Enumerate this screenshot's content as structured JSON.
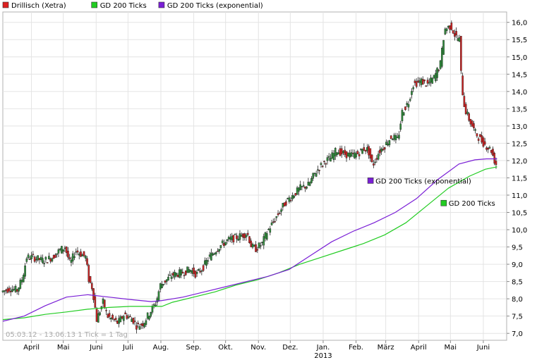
{
  "chart_data": {
    "type": "candlestick",
    "legend": [
      {
        "label": "Drillisch (Xetra)",
        "color": "#dd2020"
      },
      {
        "label": "GD 200 Ticks",
        "color": "#22cc22"
      },
      {
        "label": "GD 200 Ticks (exponential)",
        "color": "#7a1fd6"
      }
    ],
    "y_ticks": [
      "16,0",
      "15,5",
      "15,0",
      "14,5",
      "14,0",
      "13,5",
      "13,0",
      "12,5",
      "12,0",
      "11,5",
      "11,0",
      "10,5",
      "10,0",
      "9,5",
      "9,0",
      "8,5",
      "8,0",
      "7,5",
      "7,0"
    ],
    "ylim": [
      6.8,
      16.3
    ],
    "x_ticks": [
      {
        "label": "April",
        "t": 27
      },
      {
        "label": "Mai",
        "t": 57
      },
      {
        "label": "Juni",
        "t": 88
      },
      {
        "label": "Juli",
        "t": 118
      },
      {
        "label": "Aug.",
        "t": 149
      },
      {
        "label": "Sep.",
        "t": 180
      },
      {
        "label": "Okt.",
        "t": 210
      },
      {
        "label": "Nov.",
        "t": 241
      },
      {
        "label": "Dez.",
        "t": 271
      },
      {
        "label": "Jan.",
        "t": 302
      },
      {
        "label": "Feb.",
        "t": 333
      },
      {
        "label": "März",
        "t": 361
      },
      {
        "label": "April",
        "t": 392
      },
      {
        "label": "Mai",
        "t": 422
      },
      {
        "label": "Juni",
        "t": 453
      }
    ],
    "year_label": {
      "label": "2013",
      "t": 302
    },
    "x_range_days": [
      0,
      475
    ],
    "info_text": "05.03.12 - 13.06.13   1 Tick = 1 Tag",
    "annotations": [
      {
        "label": "GD 200 Ticks (exponential)",
        "color": "#7a1fd6",
        "t": 344,
        "y": 11.4
      },
      {
        "label": "GD 200 Ticks",
        "color": "#22cc22",
        "t": 413,
        "y": 10.75
      }
    ],
    "price_path": [
      [
        0,
        8.2
      ],
      [
        8,
        8.3
      ],
      [
        15,
        8.25
      ],
      [
        20,
        8.6
      ],
      [
        24,
        9.2
      ],
      [
        30,
        9.2
      ],
      [
        40,
        9.1
      ],
      [
        48,
        9.2
      ],
      [
        55,
        9.4
      ],
      [
        60,
        9.5
      ],
      [
        65,
        9.0
      ],
      [
        70,
        9.4
      ],
      [
        80,
        9.2
      ],
      [
        82,
        8.6
      ],
      [
        86,
        8.3
      ],
      [
        90,
        7.4
      ],
      [
        96,
        7.9
      ],
      [
        100,
        7.5
      ],
      [
        110,
        7.3
      ],
      [
        116,
        7.55
      ],
      [
        124,
        7.4
      ],
      [
        128,
        7.2
      ],
      [
        134,
        7.3
      ],
      [
        140,
        7.6
      ],
      [
        146,
        7.9
      ],
      [
        150,
        8.4
      ],
      [
        156,
        8.55
      ],
      [
        162,
        8.7
      ],
      [
        170,
        8.75
      ],
      [
        178,
        8.85
      ],
      [
        184,
        8.7
      ],
      [
        190,
        8.9
      ],
      [
        196,
        9.2
      ],
      [
        205,
        9.5
      ],
      [
        214,
        9.7
      ],
      [
        224,
        9.8
      ],
      [
        232,
        9.9
      ],
      [
        236,
        9.5
      ],
      [
        240,
        9.45
      ],
      [
        246,
        9.6
      ],
      [
        250,
        9.9
      ],
      [
        256,
        10.2
      ],
      [
        262,
        10.5
      ],
      [
        268,
        10.8
      ],
      [
        275,
        11.0
      ],
      [
        282,
        11.2
      ],
      [
        290,
        11.3
      ],
      [
        295,
        11.6
      ],
      [
        300,
        11.8
      ],
      [
        306,
        12.0
      ],
      [
        310,
        12.05
      ],
      [
        316,
        12.3
      ],
      [
        322,
        12.2
      ],
      [
        330,
        12.15
      ],
      [
        336,
        12.2
      ],
      [
        342,
        12.35
      ],
      [
        346,
        12.3
      ],
      [
        350,
        11.85
      ],
      [
        356,
        12.25
      ],
      [
        362,
        12.45
      ],
      [
        368,
        12.7
      ],
      [
        374,
        12.6
      ],
      [
        378,
        13.4
      ],
      [
        384,
        13.7
      ],
      [
        388,
        14.2
      ],
      [
        396,
        14.3
      ],
      [
        402,
        14.2
      ],
      [
        408,
        14.4
      ],
      [
        414,
        14.8
      ],
      [
        418,
        15.8
      ],
      [
        424,
        15.9
      ],
      [
        428,
        15.6
      ],
      [
        432,
        15.5
      ],
      [
        434,
        14.2
      ],
      [
        437,
        13.5
      ],
      [
        441,
        13.2
      ],
      [
        447,
        12.8
      ],
      [
        452,
        12.6
      ],
      [
        458,
        12.4
      ],
      [
        462,
        12.3
      ],
      [
        466,
        11.9
      ]
    ],
    "series": [
      {
        "name": "GD 200 Ticks",
        "color": "#22cc22",
        "points": [
          [
            0,
            7.4
          ],
          [
            20,
            7.45
          ],
          [
            40,
            7.55
          ],
          [
            60,
            7.62
          ],
          [
            80,
            7.7
          ],
          [
            100,
            7.75
          ],
          [
            120,
            7.78
          ],
          [
            140,
            7.78
          ],
          [
            150,
            7.78
          ],
          [
            160,
            7.9
          ],
          [
            180,
            8.05
          ],
          [
            200,
            8.2
          ],
          [
            220,
            8.4
          ],
          [
            240,
            8.55
          ],
          [
            260,
            8.75
          ],
          [
            280,
            9.0
          ],
          [
            300,
            9.2
          ],
          [
            320,
            9.4
          ],
          [
            340,
            9.6
          ],
          [
            360,
            9.85
          ],
          [
            380,
            10.2
          ],
          [
            400,
            10.7
          ],
          [
            420,
            11.2
          ],
          [
            440,
            11.55
          ],
          [
            455,
            11.75
          ],
          [
            466,
            11.82
          ]
        ]
      },
      {
        "name": "GD 200 Ticks (exponential)",
        "color": "#7a1fd6",
        "points": [
          [
            0,
            7.35
          ],
          [
            20,
            7.5
          ],
          [
            40,
            7.8
          ],
          [
            60,
            8.05
          ],
          [
            80,
            8.12
          ],
          [
            100,
            8.05
          ],
          [
            120,
            7.98
          ],
          [
            140,
            7.92
          ],
          [
            150,
            7.95
          ],
          [
            170,
            8.05
          ],
          [
            190,
            8.2
          ],
          [
            210,
            8.35
          ],
          [
            230,
            8.5
          ],
          [
            250,
            8.65
          ],
          [
            270,
            8.85
          ],
          [
            290,
            9.25
          ],
          [
            310,
            9.65
          ],
          [
            330,
            9.95
          ],
          [
            350,
            10.2
          ],
          [
            370,
            10.5
          ],
          [
            390,
            10.9
          ],
          [
            410,
            11.45
          ],
          [
            430,
            11.9
          ],
          [
            445,
            12.02
          ],
          [
            456,
            12.05
          ],
          [
            466,
            12.05
          ]
        ]
      }
    ]
  }
}
